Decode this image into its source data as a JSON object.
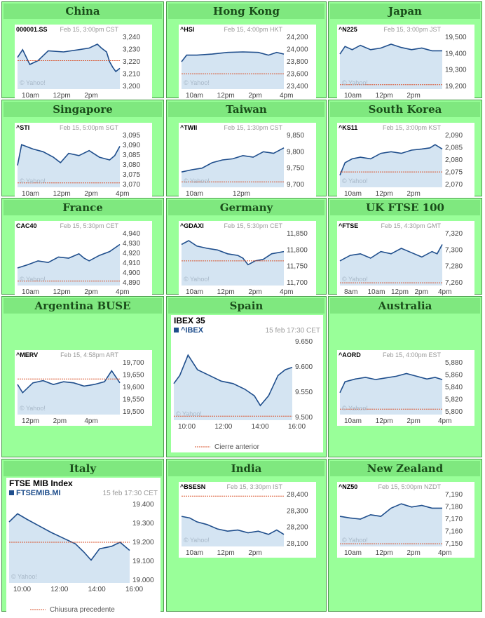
{
  "markets": [
    {
      "id": "china",
      "region": "China",
      "symbol": "000001.SS",
      "meta": "Feb 15, 3:00pm CST",
      "yticks": [
        "3,240",
        "3,230",
        "3,220",
        "3,210",
        "3,200"
      ],
      "xticks": [
        "10am",
        "12pm",
        "2pm"
      ],
      "watermark": "© Yahoo!"
    },
    {
      "id": "hongkong",
      "region": "Hong Kong",
      "symbol": "^HSI",
      "meta": "Feb 15, 4:00pm HKT",
      "yticks": [
        "24,200",
        "24,000",
        "23,800",
        "23,600",
        "23,400"
      ],
      "xticks": [
        "10am",
        "12pm",
        "2pm",
        "4pm"
      ],
      "watermark": "© Yahoo!"
    },
    {
      "id": "japan",
      "region": "Japan",
      "symbol": "^N225",
      "meta": "Feb 15, 3:00pm JST",
      "yticks": [
        "19,500",
        "19,400",
        "19,300",
        "19,200"
      ],
      "xticks": [
        "10am",
        "12pm",
        "2pm"
      ],
      "watermark": "© Yahoo!"
    },
    {
      "id": "singapore",
      "region": "Singapore",
      "symbol": "^STI",
      "meta": "Feb 15, 5:00pm SGT",
      "yticks": [
        "3,095",
        "3,090",
        "3,085",
        "3,080",
        "3,075",
        "3,070"
      ],
      "xticks": [
        "10am",
        "12pm",
        "2pm",
        "4pm"
      ],
      "watermark": "© Yahoo!"
    },
    {
      "id": "taiwan",
      "region": "Taiwan",
      "symbol": "^TWII",
      "meta": "Feb 15, 1:30pm CST",
      "yticks": [
        "9,850",
        "9,800",
        "9,750",
        "9,700"
      ],
      "xticks": [
        "10am",
        "12pm"
      ],
      "watermark": "© Yahoo!"
    },
    {
      "id": "southkorea",
      "region": "South Korea",
      "symbol": "^KS11",
      "meta": "Feb 15, 3:00pm KST",
      "yticks": [
        "2,090",
        "2,085",
        "2,080",
        "2,075",
        "2,070"
      ],
      "xticks": [
        "10am",
        "12pm",
        "2pm"
      ],
      "watermark": "© Yahoo!"
    },
    {
      "id": "france",
      "region": "France",
      "symbol": "CAC40",
      "meta": "Feb 15, 5:30pm CET",
      "yticks": [
        "4,940",
        "4,930",
        "4,920",
        "4,910",
        "4,900",
        "4,890"
      ],
      "xticks": [
        "10am",
        "12pm",
        "2pm",
        "4pm"
      ],
      "watermark": "© Yahoo!"
    },
    {
      "id": "germany",
      "region": "Germany",
      "symbol": "^GDAXI",
      "meta": "Feb 15, 5:30pm CET",
      "yticks": [
        "11,850",
        "11,800",
        "11,750",
        "11,700"
      ],
      "xticks": [
        "10am",
        "12pm",
        "2pm",
        "4pm"
      ],
      "watermark": "© Yahoo!"
    },
    {
      "id": "uk",
      "region": "UK FTSE 100",
      "symbol": "^FTSE",
      "meta": "Feb 15, 4:30pm GMT",
      "yticks": [
        "7,320",
        "7,300",
        "7,280",
        "7,260"
      ],
      "xticks": [
        "8am",
        "10am",
        "12pm",
        "2pm",
        "4pm"
      ],
      "watermark": "© Yahoo!"
    },
    {
      "id": "argentina",
      "region": "Argentina BUSE",
      "symbol": "^MERV",
      "meta": "Feb 15, 4:58pm ART",
      "yticks": [
        "19,700",
        "19,650",
        "19,600",
        "19,550",
        "19,500"
      ],
      "xticks": [
        "12pm",
        "2pm",
        "4pm"
      ],
      "watermark": "© Yahoo!"
    },
    {
      "id": "spain",
      "region": "Spain",
      "title": "IBEX 35",
      "symbol": "^IBEX",
      "meta": "15 feb 17:30 CET",
      "yticks": [
        "9.650",
        "9.600",
        "9.550",
        "9.500"
      ],
      "xticks": [
        "10:00",
        "12:00",
        "14:00",
        "16:00"
      ],
      "watermark": "© Yahoo!",
      "legend": "Cierre anterior"
    },
    {
      "id": "australia",
      "region": "Australia",
      "symbol": "^AORD",
      "meta": "Feb 15, 4:00pm EST",
      "yticks": [
        "5,880",
        "5,860",
        "5,840",
        "5,820",
        "5,800"
      ],
      "xticks": [
        "10am",
        "12pm",
        "2pm",
        "4pm"
      ],
      "watermark": "© Yahoo!"
    },
    {
      "id": "italy",
      "region": "Italy",
      "title": "FTSE MIB Index",
      "symbol": "FTSEMIB.MI",
      "meta": "15 feb 17:30 CET",
      "yticks": [
        "19.400",
        "19.300",
        "19.200",
        "19.100",
        "19.000"
      ],
      "xticks": [
        "10:00",
        "12:00",
        "14:00",
        "16:00"
      ],
      "watermark": "© Yahoo!",
      "legend": "Chiusura precedente"
    },
    {
      "id": "india",
      "region": "India",
      "symbol": "^BSESN",
      "meta": "Feb 15, 3:30pm IST",
      "yticks": [
        "28,400",
        "28,300",
        "28,200",
        "28,100"
      ],
      "xticks": [
        "10am",
        "12pm",
        "2pm"
      ],
      "watermark": "© Yahoo!"
    },
    {
      "id": "newzealand",
      "region": "New Zealand",
      "symbol": "^NZ50",
      "meta": "Feb 15, 5:00pm NZDT",
      "yticks": [
        "7,190",
        "7,180",
        "7,170",
        "7,160",
        "7,150"
      ],
      "xticks": [
        "10am",
        "12pm",
        "2pm",
        "4pm"
      ],
      "watermark": "© Yahoo!"
    }
  ],
  "colors": {
    "cell_bg": "#99ff99",
    "title_bg": "#7fe87f",
    "line": "#1f4e8c",
    "fill": "#d4e4f2",
    "prev_close": "#d9532c"
  }
}
